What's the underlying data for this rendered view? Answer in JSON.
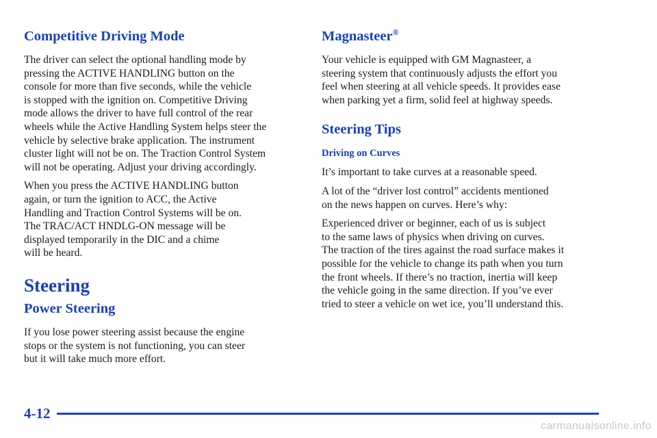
{
  "left": {
    "competitive_heading": "Competitive Driving Mode",
    "competitive_p1": "The driver can select the optional handling mode by\npressing the ACTIVE HANDLING button on the\nconsole for more than five seconds, while the vehicle\nis stopped with the ignition on. Competitive Driving\nmode allows the driver to have full control of the rear\nwheels while the Active Handling System helps steer the\nvehicle by selective brake application. The instrument\ncluster light will not be on. The Traction Control System\nwill not be operating. Adjust your driving accordingly.",
    "competitive_p2": "When you press the ACTIVE HANDLING button\nagain, or turn the ignition to ACC, the Active\nHandling and Traction Control Systems will be on.\nThe TRAC/ACT HNDLG-ON message will be\ndisplayed temporarily in the DIC and a chime\nwill be heard.",
    "steering_heading": "Steering",
    "power_steering_heading": "Power Steering",
    "power_steering_p": "If you lose power steering assist because the engine\nstops or the system is not functioning, you can steer\nbut it will take much more effort."
  },
  "right": {
    "magnasteer_heading": "Magnasteer",
    "magnasteer_mark": "®",
    "magnasteer_p": "Your vehicle is equipped with GM Magnasteer, a\nsteering system that continuously adjusts the effort you\nfeel when steering at all vehicle speeds. It provides ease\nwhen parking yet a firm, solid feel at highway speeds.",
    "steering_tips_heading": "Steering Tips",
    "curves_heading": "Driving on Curves",
    "curves_p1": "It’s important to take curves at a reasonable speed.",
    "curves_p2": "A lot of the “driver lost control” accidents mentioned\non the news happen on curves. Here’s why:",
    "curves_p3": "Experienced driver or beginner, each of us is subject\nto the same laws of physics when driving on curves.\nThe traction of the tires against the road surface makes it\npossible for the vehicle to change its path when you turn\nthe front wheels. If there’s no traction, inertia will keep\nthe vehicle going in the same direction. If you’ve ever\ntried to steer a vehicle on wet ice, you’ll understand this."
  },
  "footer": {
    "page_number": "4-12",
    "watermark": "carmanualsonline.info"
  },
  "colors": {
    "heading_blue": "#1740c0",
    "body_text": "#1a1a1a"
  }
}
